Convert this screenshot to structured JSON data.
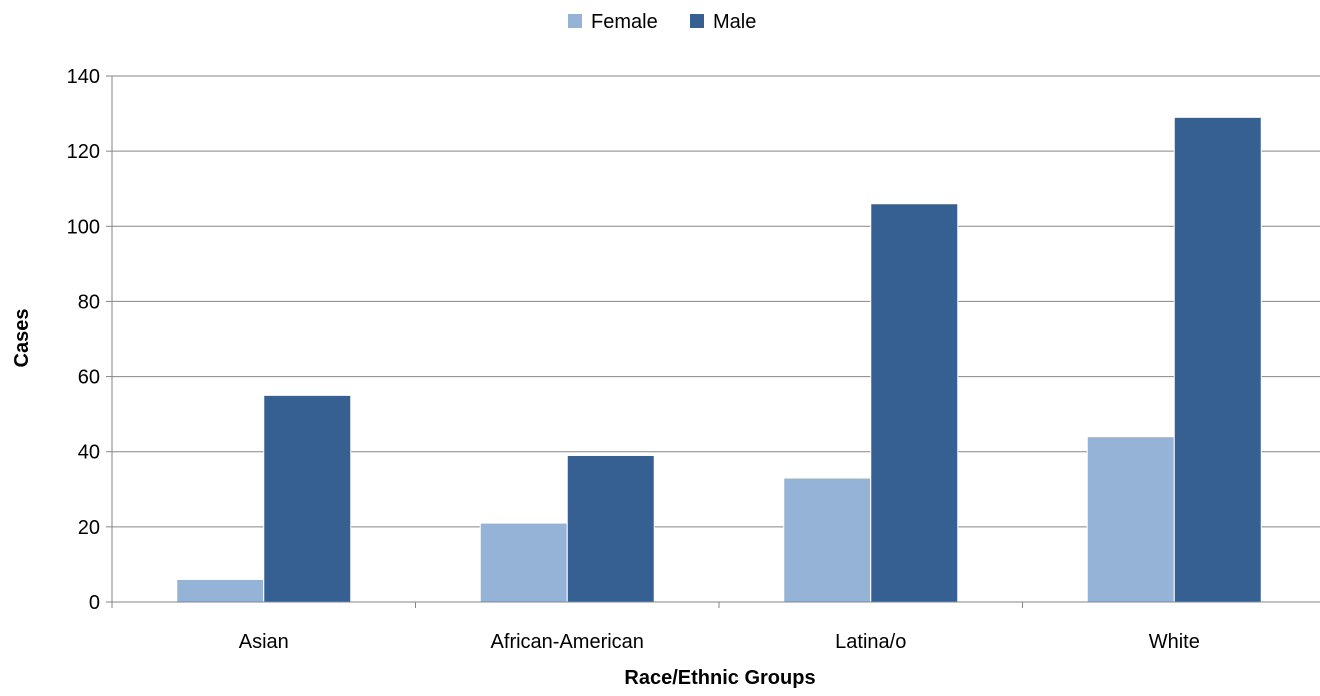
{
  "chart_data": {
    "type": "bar",
    "title": "",
    "xlabel": "Race/Ethnic Groups",
    "ylabel": "Cases",
    "categories": [
      "Asian",
      "African-American",
      "Latina/o",
      "White"
    ],
    "series": [
      {
        "name": "Female",
        "color": "#95b3d7",
        "values": [
          6,
          21,
          33,
          44
        ]
      },
      {
        "name": "Male",
        "color": "#366092",
        "values": [
          55,
          39,
          106,
          129
        ]
      }
    ],
    "ylim": [
      0,
      140
    ],
    "yticks": [
      "0",
      "20",
      "40",
      "60",
      "80",
      "100",
      "120",
      "140"
    ],
    "grid": true,
    "legend_position": "top-center"
  }
}
